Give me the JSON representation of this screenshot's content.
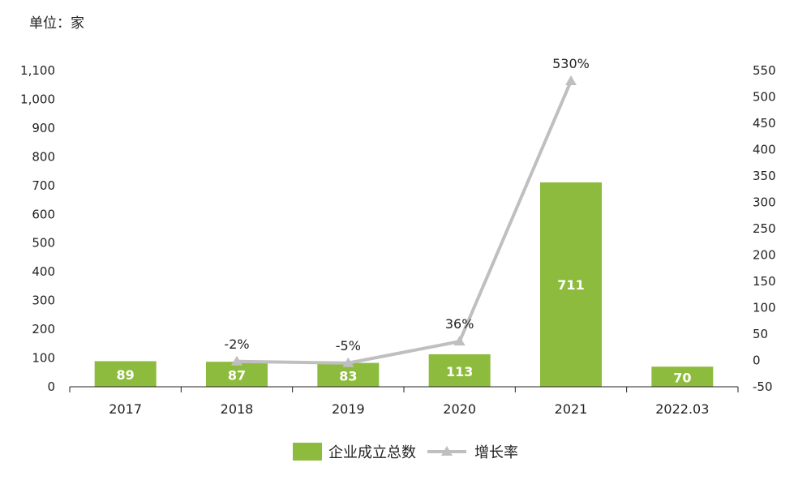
{
  "unit_label": "单位：家",
  "colors": {
    "bar": "#8dbb3d",
    "line": "#bfbfbf",
    "axis": "#222222"
  },
  "legend": {
    "bar_label": "企业成立总数",
    "line_label": "增长率"
  },
  "chart_data": {
    "type": "bar",
    "categories": [
      "2017",
      "2018",
      "2019",
      "2020",
      "2021",
      "2022.03"
    ],
    "series": [
      {
        "name": "企业成立总数",
        "type": "bar",
        "axis": "left",
        "values": [
          89,
          87,
          83,
          113,
          711,
          70
        ],
        "labels": [
          "89",
          "87",
          "83",
          "113",
          "711",
          "70"
        ]
      },
      {
        "name": "增长率",
        "type": "line",
        "axis": "right",
        "marker": "triangle",
        "values": [
          null,
          -2,
          -5,
          36,
          530,
          null
        ],
        "labels": [
          null,
          "-2%",
          "-5%",
          "36%",
          "530%",
          null
        ]
      }
    ],
    "ylim_left": [
      0,
      1100
    ],
    "yticks_left": [
      0,
      100,
      200,
      300,
      400,
      500,
      600,
      700,
      800,
      900,
      1000,
      1100
    ],
    "yticklabels_left": [
      "0",
      "100",
      "200",
      "300",
      "400",
      "500",
      "600",
      "700",
      "800",
      "900",
      "1,000",
      "1,100"
    ],
    "ylim_right": [
      -50,
      550
    ],
    "yticks_right": [
      -50,
      0,
      50,
      100,
      150,
      200,
      250,
      300,
      350,
      400,
      450,
      500,
      550
    ],
    "yticklabels_right": [
      "-50",
      "0",
      "50",
      "100",
      "150",
      "200",
      "250",
      "300",
      "350",
      "400",
      "450",
      "500",
      "550"
    ],
    "grid": false,
    "legend_position": "bottom-center"
  }
}
